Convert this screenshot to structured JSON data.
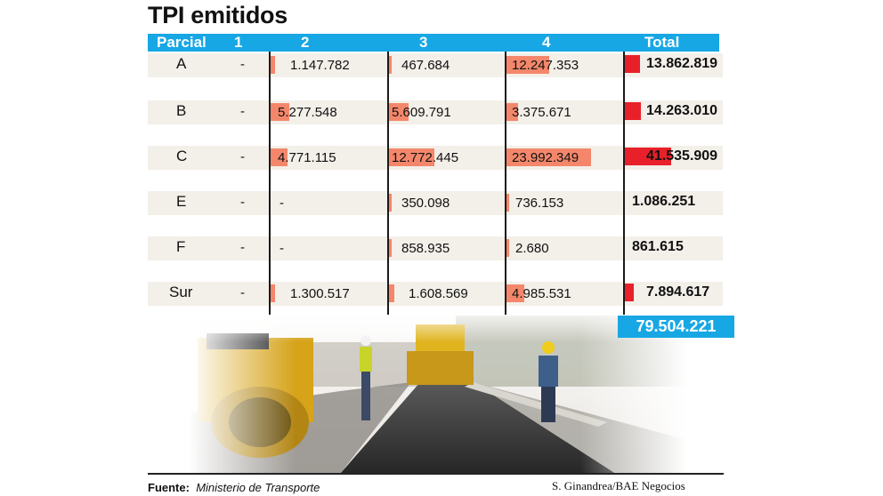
{
  "title": "TPI emitidos",
  "header": {
    "parcial": "Parcial",
    "c1": "1",
    "c2": "2",
    "c3": "3",
    "c4": "4",
    "total": "Total"
  },
  "colors": {
    "header": "#17a7e4",
    "bar": "#f4876b",
    "total_bar": "#e8202a",
    "row": "#f3efe9"
  },
  "chart_data": {
    "type": "table",
    "columns": [
      "Parcial",
      "1",
      "2",
      "3",
      "4",
      "Total"
    ],
    "rows": [
      {
        "label": "A",
        "c1": "-",
        "c2": "1.147.782",
        "c3": "467.684",
        "c4": "12.247.353",
        "total": "13.862.819",
        "v2": 1147782,
        "v3": 467684,
        "v4": 12247353,
        "vt": 13862819
      },
      {
        "label": "B",
        "c1": "-",
        "c2": "5.277.548",
        "c3": "5.609.791",
        "c4": "3.375.671",
        "total": "14.263.010",
        "v2": 5277548,
        "v3": 5609791,
        "v4": 3375671,
        "vt": 14263010
      },
      {
        "label": "C",
        "c1": "-",
        "c2": "4.771.115",
        "c3": "12.772.445",
        "c4": "23.992.349",
        "total": "41.535.909",
        "v2": 4771115,
        "v3": 12772445,
        "v4": 23992349,
        "vt": 41535909
      },
      {
        "label": "E",
        "c1": "-",
        "c2": "-",
        "c3": "350.098",
        "c4": "736.153",
        "total": "1.086.251",
        "v2": 0,
        "v3": 350098,
        "v4": 736153,
        "vt": 1086251
      },
      {
        "label": "F",
        "c1": "-",
        "c2": "-",
        "c3": "858.935",
        "c4": "2.680",
        "total": "861.615",
        "v2": 0,
        "v3": 858935,
        "v4": 2680,
        "vt": 861615
      },
      {
        "label": "Sur",
        "c1": "-",
        "c2": "1.300.517",
        "c3": "1.608.569",
        "c4": "4.985.531",
        "total": "7.894.617",
        "v2": 1300517,
        "v3": 1608569,
        "v4": 4985531,
        "vt": 7894617
      }
    ],
    "grand_total": "79.504.221"
  },
  "footer": {
    "fuente_label": "Fuente:",
    "fuente_value": "Ministerio de Transporte",
    "credit": "S. Ginandrea/BAE Negocios"
  }
}
